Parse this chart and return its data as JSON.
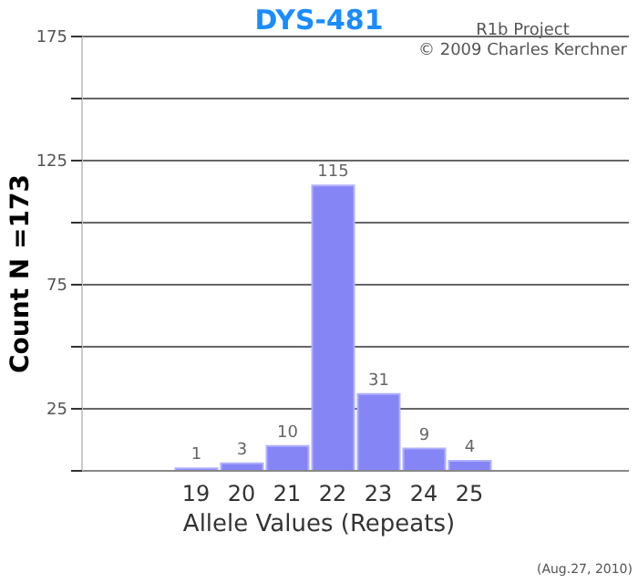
{
  "chart_data": {
    "type": "bar",
    "title": "DYS-481",
    "xlabel": "Allele Values (Repeats)",
    "ylabel": "Count N =173",
    "categories": [
      null,
      null,
      "19",
      "20",
      "21",
      "22",
      "23",
      "24",
      "25",
      null,
      null,
      null
    ],
    "values": [
      null,
      null,
      1,
      3,
      10,
      115,
      31,
      9,
      4,
      null,
      null,
      null
    ],
    "color": "#8585f5",
    "ylim": [
      0,
      175
    ],
    "yticks": [
      {
        "value": 0,
        "label": null
      },
      25,
      {
        "value": 50,
        "label": null
      },
      75,
      {
        "value": 100,
        "label": null
      },
      125,
      {
        "value": 150,
        "label": null
      },
      175
    ],
    "grid": "y",
    "data_labels": true,
    "annotations": [
      "R1b Project",
      "© 2009 Charles Kerchner",
      "(Aug.27, 2010)"
    ]
  }
}
